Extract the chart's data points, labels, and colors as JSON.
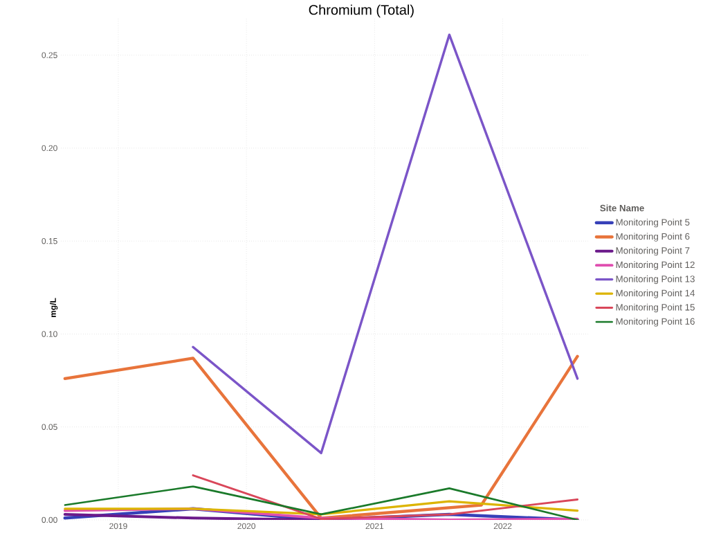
{
  "chart_data": {
    "type": "line",
    "title": "Chromium (Total)",
    "ylabel": "mg/L",
    "legend_title": "Site Name",
    "xlim": [
      "2018-07-20",
      "2022-09-01"
    ],
    "ylim": [
      0,
      0.27
    ],
    "xticks": [
      {
        "value": "2019",
        "label": "2019"
      },
      {
        "value": "2020",
        "label": "2020"
      },
      {
        "value": "2021",
        "label": "2021"
      },
      {
        "value": "2022",
        "label": "2022"
      }
    ],
    "yticks": [
      {
        "value": 0,
        "label": "0.00"
      },
      {
        "value": 0.05,
        "label": "0.05"
      },
      {
        "value": 0.1,
        "label": "0.10"
      },
      {
        "value": 0.15,
        "label": "0.15"
      },
      {
        "value": 0.2,
        "label": "0.20"
      },
      {
        "value": 0.25,
        "label": "0.25"
      }
    ],
    "grid": true,
    "legend": "right",
    "marker": "none",
    "line_style": "solid",
    "series": [
      {
        "name": "Monitoring Point 5",
        "color": "#3640b8",
        "x": [
          "2018-08",
          "2019-08",
          "2020-08",
          "2021-08",
          "2022-08"
        ],
        "values": [
          0.001,
          0.006,
          0.0,
          0.003,
          0.0
        ]
      },
      {
        "name": "Monitoring Point 6",
        "color": "#e8743b",
        "x": [
          "2018-08",
          "2019-08",
          "2020-08",
          "2021-11",
          "2022-08"
        ],
        "values": [
          0.076,
          0.087,
          0.001,
          0.008,
          0.088
        ]
      },
      {
        "name": "Monitoring Point 7",
        "color": "#6b1a8a",
        "x": [
          "2018-08",
          "2019-08",
          "2020-08",
          "2021-08",
          "2022-08"
        ],
        "values": [
          0.003,
          0.001,
          0.0,
          0.0,
          0.0
        ]
      },
      {
        "name": "Monitoring Point 12",
        "color": "#e04fb0",
        "x": [
          "2018-08",
          "2019-08",
          "2020-08",
          "2021-08",
          "2022-08"
        ],
        "values": [
          0.005,
          0.006,
          0.001,
          0.0,
          0.0005
        ]
      },
      {
        "name": "Monitoring Point 13",
        "color": "#7b55c8",
        "x": [
          "2019-08",
          "2020-08",
          "2021-08",
          "2022-08"
        ],
        "values": [
          0.093,
          0.036,
          0.261,
          0.076
        ]
      },
      {
        "name": "Monitoring Point 14",
        "color": "#dcb400",
        "x": [
          "2018-08",
          "2019-08",
          "2020-08",
          "2021-08",
          "2022-08"
        ],
        "values": [
          0.006,
          0.006,
          0.003,
          0.01,
          0.005
        ]
      },
      {
        "name": "Monitoring Point 15",
        "color": "#d9475a",
        "x": [
          "2019-08",
          "2020-08",
          "2021-08",
          "2022-08"
        ],
        "values": [
          0.024,
          0.0005,
          0.003,
          0.011
        ]
      },
      {
        "name": "Monitoring Point 16",
        "color": "#1a7a2a",
        "x": [
          "2018-08",
          "2019-08",
          "2020-08",
          "2021-08",
          "2022-08"
        ],
        "values": [
          0.008,
          0.018,
          0.003,
          0.017,
          0.0
        ]
      }
    ]
  }
}
